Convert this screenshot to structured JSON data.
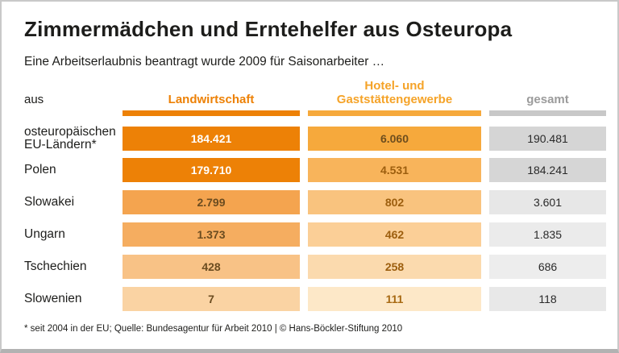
{
  "header": {
    "title": "Zimmermädchen und Erntehelfer aus Osteuropa",
    "subtitle": "Eine Arbeitserlaubnis beantragt wurde 2009 für Saisonarbeiter …"
  },
  "table": {
    "corner_label": "aus",
    "columns": [
      {
        "label": "Landwirtschaft",
        "text_color": "#ED8106",
        "bar_color": "#ED8106"
      },
      {
        "label": "Hotel- und\nGaststättengewerbe",
        "text_color": "#F5A328",
        "bar_color": "#F6A93C"
      },
      {
        "label": "gesamt",
        "text_color": "#9B9B9B",
        "bar_color": "#C8C8C8"
      }
    ],
    "rows": [
      {
        "label": "osteuropäischen\nEU-Ländern*",
        "landwirtschaft": "184.421",
        "hotel": "6.060",
        "gesamt": "190.481",
        "colors": {
          "land": "#ED8106",
          "hotel": "#F6A93C",
          "gesamt": "#D5D5D5",
          "land_text": "#FFFFFF",
          "hotel_text": "#6E4E1E",
          "gesamt_text": "#2A2A2A"
        }
      },
      {
        "label": "Polen",
        "landwirtschaft": "179.710",
        "hotel": "4.531",
        "gesamt": "184.241",
        "colors": {
          "land": "#ED8106",
          "hotel": "#F8B45B",
          "gesamt": "#D6D6D6",
          "land_text": "#FFFFFF",
          "hotel_text": "#9C5E0E",
          "gesamt_text": "#2A2A2A"
        }
      },
      {
        "label": "Slowakei",
        "landwirtschaft": "2.799",
        "hotel": "802",
        "gesamt": "3.601",
        "colors": {
          "land": "#F4A44F",
          "hotel": "#F9C37E",
          "gesamt": "#E7E7E7",
          "land_text": "#6B4C20",
          "hotel_text": "#9C5E0E",
          "gesamt_text": "#2A2A2A"
        }
      },
      {
        "label": "Ungarn",
        "landwirtschaft": "1.373",
        "hotel": "462",
        "gesamt": "1.835",
        "colors": {
          "land": "#F5AD60",
          "hotel": "#FBCF97",
          "gesamt": "#EBEBEB",
          "land_text": "#6B4C20",
          "hotel_text": "#9C5E0E",
          "gesamt_text": "#2A2A2A"
        }
      },
      {
        "label": "Tschechien",
        "landwirtschaft": "428",
        "hotel": "258",
        "gesamt": "686",
        "colors": {
          "land": "#F8C286",
          "hotel": "#FBDAAE",
          "gesamt": "#EDEDED",
          "land_text": "#6B4C20",
          "hotel_text": "#9C5E0E",
          "gesamt_text": "#2A2A2A"
        }
      },
      {
        "label": "Slowenien",
        "landwirtschaft": "7",
        "hotel": "111",
        "gesamt": "118",
        "colors": {
          "land": "#FAD3A3",
          "hotel": "#FDE8C8",
          "gesamt": "#E8E8E8",
          "land_text": "#6B4C20",
          "hotel_text": "#A86A14",
          "gesamt_text": "#2A2A2A"
        }
      }
    ]
  },
  "footer": {
    "note": "* seit 2004 in der EU; Quelle: Bundesagentur für Arbeit 2010 | © Hans-Böckler-Stiftung 2010"
  },
  "chart_data": {
    "type": "table",
    "title": "Zimmermädchen und Erntehelfer aus Osteuropa",
    "subtitle": "Eine Arbeitserlaubnis beantragt wurde 2009 für Saisonarbeiter …",
    "categories": [
      "osteuropäischen EU-Ländern*",
      "Polen",
      "Slowakei",
      "Ungarn",
      "Tschechien",
      "Slowenien"
    ],
    "series": [
      {
        "name": "Landwirtschaft",
        "values": [
          184421,
          179710,
          2799,
          1373,
          428,
          7
        ]
      },
      {
        "name": "Hotel- und Gaststättengewerbe",
        "values": [
          6060,
          4531,
          802,
          462,
          258,
          111
        ]
      },
      {
        "name": "gesamt",
        "values": [
          190481,
          184241,
          3601,
          1835,
          686,
          118
        ]
      }
    ],
    "note": "* seit 2004 in der EU; Quelle: Bundesagentur für Arbeit 2010 | © Hans-Böckler-Stiftung 2010",
    "accent_colors": {
      "dark_orange": "#ED8106",
      "light_orange": "#F6A93C",
      "gray": "#C8C8C8"
    }
  }
}
